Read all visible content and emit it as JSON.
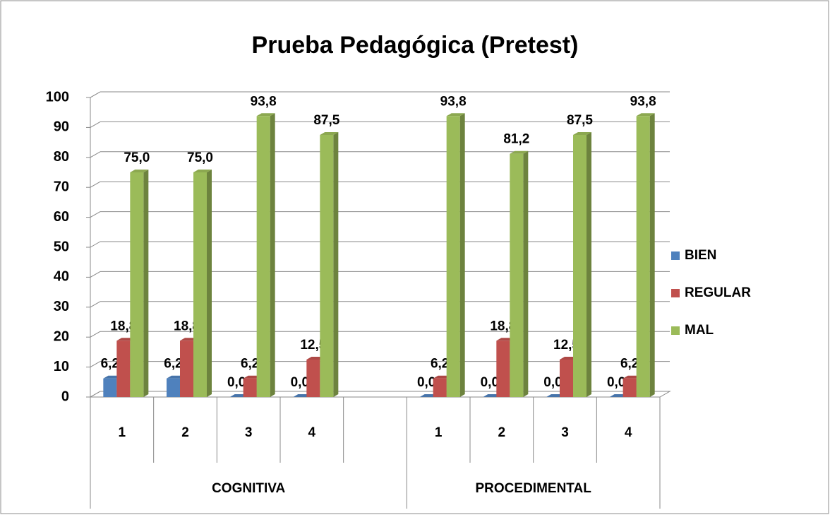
{
  "chart_data": {
    "type": "bar3d",
    "title": "Prueba Pedagógica (Pretest)",
    "categories": [
      "1",
      "2",
      "3",
      "4",
      null,
      "1",
      "2",
      "3",
      "4"
    ],
    "groups": [
      "COGNITIVA",
      "PROCEDIMENTAL"
    ],
    "series": [
      {
        "name": "BIEN",
        "color": "#4f81bd",
        "values": [
          6.2,
          6.2,
          0,
          0,
          null,
          0,
          0,
          0,
          0
        ],
        "value_labels": [
          "6,2",
          "6,2",
          "0,0",
          "0,0",
          null,
          "0,0",
          "0,0",
          "0,0",
          "0,0"
        ]
      },
      {
        "name": "REGULAR",
        "color": "#c0504d",
        "values": [
          18.8,
          18.8,
          6.2,
          12.5,
          null,
          6.2,
          18.8,
          12.5,
          6.2
        ],
        "value_labels": [
          "18,8",
          "18,8",
          "6,2",
          "12,5",
          null,
          "6,2",
          "18,8",
          "12,5",
          "6,2"
        ]
      },
      {
        "name": "MAL",
        "color": "#9bbb59",
        "values": [
          75,
          75,
          93.8,
          87.5,
          null,
          93.8,
          81.2,
          87.5,
          93.8
        ],
        "value_labels": [
          "75,0",
          "75,0",
          "93,8",
          "87,5",
          null,
          "93,8",
          "81,2",
          "87,5",
          "93,8"
        ]
      }
    ],
    "ylim": [
      0,
      100
    ],
    "yticks": [
      0,
      10,
      20,
      30,
      40,
      50,
      60,
      70,
      80,
      90,
      100
    ],
    "grid": true,
    "legend": "right"
  }
}
